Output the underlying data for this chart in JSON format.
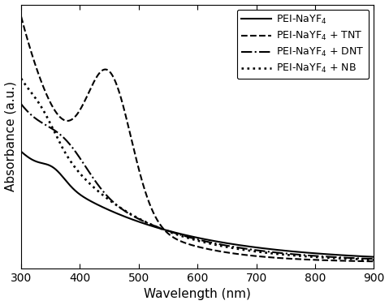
{
  "xlabel": "Wavelength (nm)",
  "ylabel": "Absorbance (a.u.)",
  "xlim": [
    300,
    900
  ],
  "ylim": [
    0,
    1.0
  ],
  "legend_labels": [
    "PEI-NaYF$_4$",
    "PEI-NaYF$_4$ + TNT",
    "PEI-NaYF$_4$ + DNT",
    "PEI-NaYF$_4$ + NB"
  ],
  "line_color": "#000000",
  "line_width": 1.5,
  "background_color": "#ffffff",
  "tick_label_fontsize": 10,
  "axis_label_fontsize": 11,
  "legend_fontsize": 9
}
